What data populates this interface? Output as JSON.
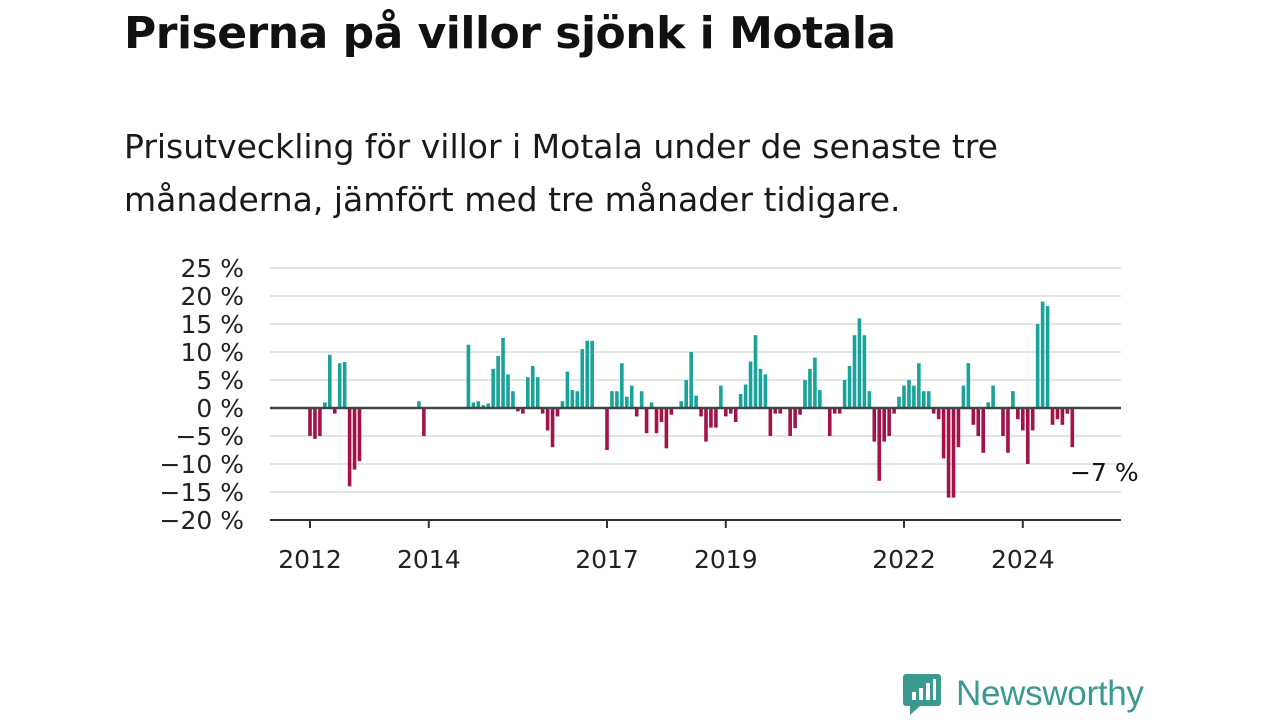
{
  "title": "Priserna på villor sjönk i Motala",
  "subtitle": "Prisutveckling för villor i Motala under de senaste tre månaderna, jämfört med tre månader tidigare.",
  "brand": "Newsworthy",
  "colors": {
    "positive": "#1aa39a",
    "negative": "#a3124a",
    "grid": "#dcdcdc",
    "zero_line": "#444444",
    "text": "#111111",
    "brand": "#3a9a8f"
  },
  "chart_data": {
    "type": "bar",
    "title": "Priserna på villor sjönk i Motala",
    "xlabel": "",
    "ylabel": "",
    "ylim": [
      -20,
      25
    ],
    "yticks": [
      25,
      20,
      15,
      10,
      5,
      0,
      -5,
      -10,
      -15,
      -20
    ],
    "ytick_labels": [
      "25 %",
      "20 %",
      "15 %",
      "10 %",
      "5 %",
      "0 %",
      "−5 %",
      "−10 %",
      "−15 %",
      "−20 %"
    ],
    "xticks": [
      {
        "month_index": 0,
        "label": "2012"
      },
      {
        "month_index": 24,
        "label": "2014"
      },
      {
        "month_index": 60,
        "label": "2017"
      },
      {
        "month_index": 84,
        "label": "2019"
      },
      {
        "month_index": 120,
        "label": "2022"
      },
      {
        "month_index": 144,
        "label": "2024"
      }
    ],
    "grid": true,
    "start_label": "2012",
    "values": [
      -5,
      -5.5,
      -5,
      1,
      9.5,
      -1,
      8,
      8.2,
      -14,
      -11,
      -9.5,
      null,
      null,
      null,
      null,
      null,
      null,
      null,
      null,
      null,
      null,
      null,
      1.2,
      -5,
      null,
      null,
      null,
      null,
      null,
      null,
      null,
      null,
      11.3,
      1,
      1.2,
      0.5,
      0.8,
      7,
      9.3,
      12.5,
      6,
      3,
      -0.6,
      -1,
      5.5,
      7.5,
      5.5,
      -1,
      -4,
      -7,
      -1.5,
      1.2,
      6.5,
      3.2,
      3,
      10.5,
      12,
      12,
      null,
      null,
      -7.5,
      3,
      3,
      8,
      2,
      4,
      -1.5,
      3,
      -4.5,
      1,
      -4.5,
      -2.5,
      -7.2,
      -1.2,
      null,
      1.2,
      5,
      10,
      2.2,
      -1.5,
      -6,
      -3.5,
      -3.5,
      4,
      -1.5,
      -1,
      -2.5,
      2.5,
      4.2,
      8.3,
      13,
      7,
      6,
      -5,
      -1,
      -1,
      null,
      -5,
      -3.6,
      -1.2,
      5,
      7,
      9,
      3.2,
      null,
      -5,
      -1,
      -1,
      5,
      7.5,
      13,
      16,
      13,
      3,
      -6,
      -13,
      -6,
      -5,
      -1,
      2,
      4,
      5,
      4,
      8,
      3,
      3,
      -1,
      -2,
      -9,
      -16,
      -16,
      -7,
      4,
      8,
      -3,
      -5,
      -8,
      1,
      4,
      null,
      -5,
      -8,
      3,
      -2,
      -4,
      -10,
      -4,
      15,
      19,
      18.2,
      -3,
      -2,
      -3,
      -1,
      -7
    ],
    "last_value_label": "−7 %"
  }
}
